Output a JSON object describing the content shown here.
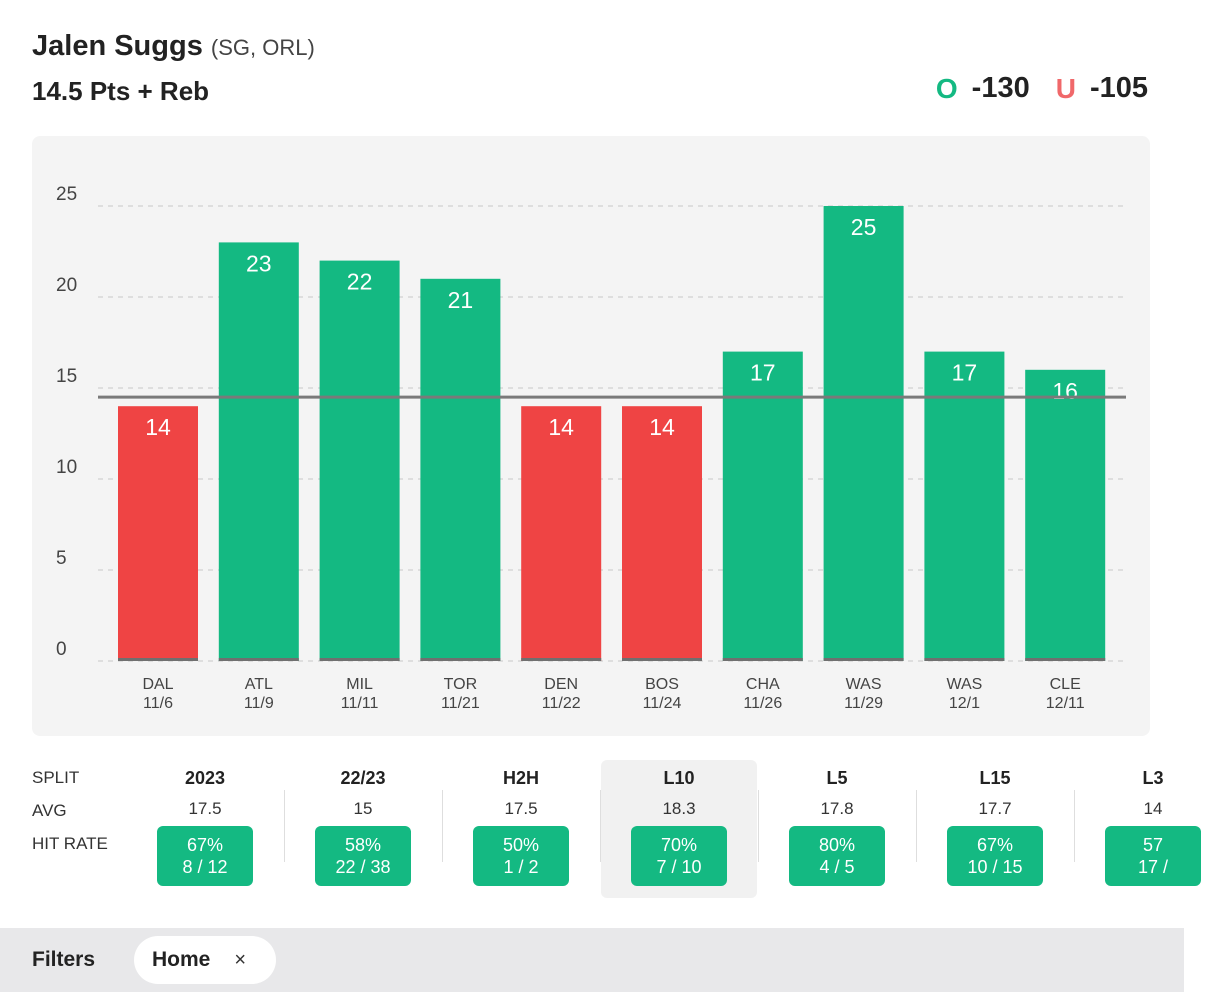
{
  "header": {
    "player_name": "Jalen Suggs",
    "player_meta": "(SG, ORL)",
    "prop_line": "14.5 Pts + Reb",
    "over_symbol": "O",
    "over_odds": "-130",
    "under_symbol": "U",
    "under_odds": "-105"
  },
  "colors": {
    "over": "#14b982",
    "under": "#f0686a",
    "hit": "#14b982",
    "miss": "#ef4444",
    "line": "#7a7a7a"
  },
  "chart_data": {
    "type": "bar",
    "title": "",
    "xlabel": "",
    "ylabel": "",
    "ylim": [
      0,
      25
    ],
    "yticks": [
      0,
      5,
      10,
      15,
      20,
      25
    ],
    "grid": true,
    "threshold": 14.5,
    "categories": [
      {
        "team": "DAL",
        "date": "11/6"
      },
      {
        "team": "ATL",
        "date": "11/9"
      },
      {
        "team": "MIL",
        "date": "11/11"
      },
      {
        "team": "TOR",
        "date": "11/21"
      },
      {
        "team": "DEN",
        "date": "11/22"
      },
      {
        "team": "BOS",
        "date": "11/24"
      },
      {
        "team": "CHA",
        "date": "11/26"
      },
      {
        "team": "WAS",
        "date": "11/29"
      },
      {
        "team": "WAS",
        "date": "12/1"
      },
      {
        "team": "CLE",
        "date": "12/11"
      }
    ],
    "values": [
      14,
      23,
      22,
      21,
      14,
      14,
      17,
      25,
      17,
      16
    ]
  },
  "splits": {
    "row_labels": {
      "split": "SPLIT",
      "avg": "AVG",
      "hit_rate": "HIT RATE"
    },
    "selected": "L10",
    "columns": [
      {
        "name": "2023",
        "avg": "17.5",
        "pct": "67%",
        "ratio": "8 / 12"
      },
      {
        "name": "22/23",
        "avg": "15",
        "pct": "58%",
        "ratio": "22 / 38"
      },
      {
        "name": "H2H",
        "avg": "17.5",
        "pct": "50%",
        "ratio": "1 / 2"
      },
      {
        "name": "L10",
        "avg": "18.3",
        "pct": "70%",
        "ratio": "7 / 10"
      },
      {
        "name": "L5",
        "avg": "17.8",
        "pct": "80%",
        "ratio": "4 / 5"
      },
      {
        "name": "L15",
        "avg": "17.7",
        "pct": "67%",
        "ratio": "10 / 15"
      },
      {
        "name": "L3",
        "avg": "14",
        "pct": "57",
        "ratio": "17 /"
      }
    ]
  },
  "filters": {
    "label": "Filters",
    "chips": [
      {
        "label": "Home",
        "close_icon": "×"
      }
    ]
  }
}
